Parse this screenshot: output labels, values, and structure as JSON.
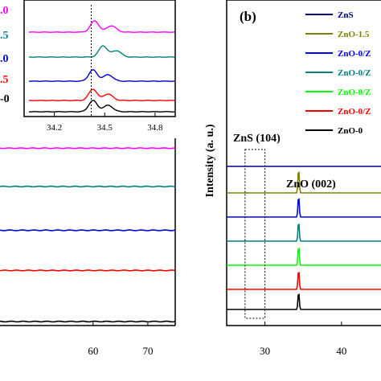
{
  "chart_data": [
    {
      "panel": "left-main",
      "type": "line",
      "x_ticks": [
        60,
        70
      ],
      "xlim": [
        43,
        75
      ],
      "series": [
        {
          "color": "#ff00ff",
          "offset": 0.95
        },
        {
          "color": "#008080",
          "offset": 0.74
        },
        {
          "color": "#0000cc",
          "offset": 0.5
        },
        {
          "color": "#ff0000",
          "offset": 0.28
        },
        {
          "color": "#000000",
          "offset": 0.0
        }
      ]
    },
    {
      "panel": "left-inset",
      "type": "line",
      "x_ticks": [
        "34.2",
        "34.5",
        "34.8"
      ],
      "xlim": [
        34.02,
        34.92
      ],
      "reference_line_x": 34.42,
      "legend_fragments": [
        {
          "text": ".0",
          "color": "#ff00ff"
        },
        {
          "text": ".5",
          "color": "#008080"
        },
        {
          "text": ".0",
          "color": "#0000cc"
        },
        {
          "text": ".5",
          "color": "#ff0000"
        },
        {
          "text": "-0",
          "color": "#000000"
        }
      ],
      "series": [
        {
          "color": "#ff00ff",
          "peaks": [
            34.44,
            34.54
          ]
        },
        {
          "color": "#008080",
          "peaks": [
            34.49,
            34.57
          ]
        },
        {
          "color": "#0000cc",
          "peaks": [
            34.43,
            34.52
          ]
        },
        {
          "color": "#ff0000",
          "peaks": [
            34.43,
            34.52
          ]
        },
        {
          "color": "#000000",
          "peaks": [
            34.43,
            34.52
          ]
        }
      ]
    },
    {
      "panel": "right",
      "type": "line",
      "panel_label": "(b)",
      "ylabel": "Intensity (a. u.)",
      "x_ticks": [
        30,
        40
      ],
      "xlim": [
        25,
        46
      ],
      "annotations": [
        {
          "text": "ZnS (104)",
          "x": 28.5
        },
        {
          "text": "ZnO (002)",
          "x": 34.4
        }
      ],
      "highlight_box_x": [
        27.4,
        30.0
      ],
      "series": [
        {
          "name": "ZnS",
          "color": "#00008b",
          "peak_height": 0
        },
        {
          "name": "ZnO-1.5",
          "color": "#808000",
          "peak_height": 0.55
        },
        {
          "name": "ZnO-0/Z",
          "color": "#0000ff",
          "peak_height": 0.48
        },
        {
          "name": "ZnO-0/Z",
          "color": "#008080",
          "peak_height": 0.45
        },
        {
          "name": "ZnO-0/Z",
          "color": "#00ff00",
          "peak_height": 0.45
        },
        {
          "name": "ZnO-0/Z",
          "color": "#ff0000",
          "peak_height": 0.45
        },
        {
          "name": "ZnO-0",
          "color": "#000000",
          "peak_height": 0.4
        }
      ]
    }
  ]
}
